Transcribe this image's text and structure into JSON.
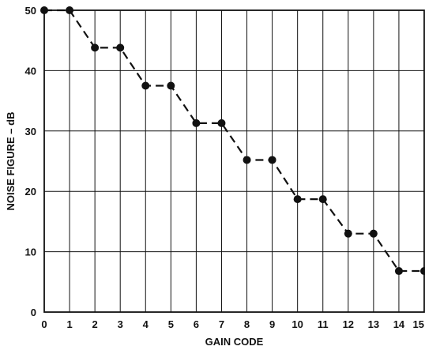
{
  "chart_data": {
    "type": "line",
    "title": "",
    "xlabel": "GAIN CODE",
    "ylabel": "NOISE FIGURE – dB",
    "x": [
      0,
      1,
      2,
      3,
      4,
      5,
      6,
      7,
      8,
      9,
      10,
      11,
      12,
      13,
      14,
      15
    ],
    "series": [
      {
        "values": [
          50,
          50,
          43.8,
          43.8,
          37.5,
          37.5,
          31.3,
          31.3,
          25.2,
          25.2,
          18.7,
          18.7,
          13.0,
          13.0,
          6.8,
          6.8
        ]
      }
    ],
    "xlim": [
      0,
      15
    ],
    "ylim": [
      0,
      50
    ],
    "x_ticks": [
      "0",
      "1",
      "2",
      "3",
      "4",
      "5",
      "6",
      "7",
      "8",
      "9",
      "10",
      "11",
      "12",
      "13",
      "14",
      "15"
    ],
    "y_ticks": [
      "0",
      "10",
      "20",
      "30",
      "40",
      "50"
    ],
    "grid": true,
    "line_style": "dashed",
    "marker": "filled-circle",
    "colors": {
      "line": "#111111",
      "grid": "#111111",
      "background": "#ffffff"
    }
  }
}
